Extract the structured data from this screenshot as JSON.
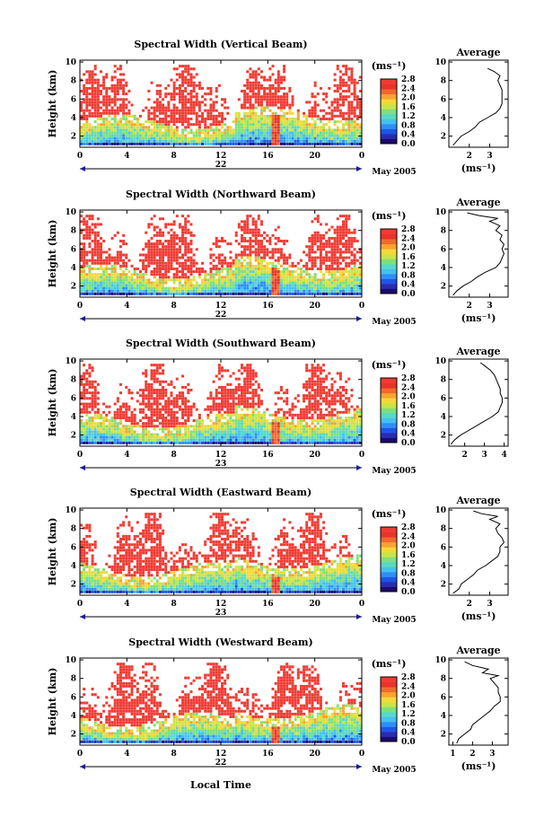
{
  "figure": {
    "xlabel": "Local Time",
    "colormap": [
      "#1a0a6b",
      "#2b2bb0",
      "#1f55e6",
      "#2f8ff5",
      "#45c0f0",
      "#58d8c8",
      "#7ee07a",
      "#c9e445",
      "#f4d83a",
      "#f7a530",
      "#f06a2c",
      "#e8342a",
      "#ef3b33"
    ]
  },
  "chart_data": [
    {
      "type": "heatmap",
      "title": "Spectral Width (Vertical Beam)",
      "ylabel": "Height (km)",
      "x_ticks": [
        "0",
        "4",
        "8",
        "12",
        "16",
        "20",
        "0"
      ],
      "y_ticks": [
        "2",
        "4",
        "6",
        "8",
        "10"
      ],
      "xlim": [
        0,
        24
      ],
      "ylim": [
        0.8,
        10.2
      ],
      "date_label": "22",
      "month_label": "May 2005",
      "colorbar": {
        "unit": "(ms⁻¹)",
        "ticks": [
          "2.8",
          "2.4",
          "2.0",
          "1.6",
          "1.2",
          "0.8",
          "0.4",
          "0.0"
        ],
        "range": [
          0.0,
          2.8
        ]
      },
      "profile": {
        "title": "Average",
        "xlabel": "(ms⁻¹)",
        "x_ticks": [
          "2",
          "3"
        ],
        "y_ticks": [
          "2",
          "4",
          "6",
          "8",
          "10"
        ],
        "xlim": [
          1.0,
          3.9
        ],
        "points": [
          [
            1.2,
            1.0
          ],
          [
            1.4,
            1.5
          ],
          [
            1.6,
            2.0
          ],
          [
            2.0,
            2.5
          ],
          [
            2.3,
            3.0
          ],
          [
            2.5,
            3.5
          ],
          [
            2.9,
            4.0
          ],
          [
            3.3,
            4.5
          ],
          [
            3.5,
            5.0
          ],
          [
            3.6,
            5.5
          ],
          [
            3.6,
            6.0
          ],
          [
            3.6,
            6.5
          ],
          [
            3.6,
            7.0
          ],
          [
            3.5,
            7.5
          ],
          [
            3.4,
            8.0
          ],
          [
            3.5,
            8.5
          ],
          [
            3.2,
            9.0
          ],
          [
            2.9,
            9.3
          ]
        ]
      }
    },
    {
      "type": "heatmap",
      "title": "Spectral Width (Northward Beam)",
      "ylabel": "Height (km)",
      "x_ticks": [
        "0",
        "4",
        "8",
        "12",
        "16",
        "20",
        "0"
      ],
      "y_ticks": [
        "2",
        "4",
        "6",
        "8",
        "10"
      ],
      "xlim": [
        0,
        24
      ],
      "ylim": [
        0.8,
        10.2
      ],
      "date_label": "22",
      "month_label": "May 2005",
      "colorbar": {
        "unit": "(ms⁻¹)",
        "ticks": [
          "2.8",
          "2.4",
          "2.0",
          "1.6",
          "1.2",
          "0.8",
          "0.4",
          "0.0"
        ],
        "range": [
          0.0,
          2.8
        ]
      },
      "profile": {
        "title": "Average",
        "xlabel": "(ms⁻¹)",
        "x_ticks": [
          "2",
          "3"
        ],
        "y_ticks": [
          "2",
          "4",
          "6",
          "8",
          "10"
        ],
        "xlim": [
          1.0,
          3.9
        ],
        "points": [
          [
            1.2,
            1.0
          ],
          [
            1.4,
            1.5
          ],
          [
            1.7,
            2.0
          ],
          [
            2.1,
            2.5
          ],
          [
            2.4,
            3.0
          ],
          [
            2.8,
            3.5
          ],
          [
            3.3,
            4.0
          ],
          [
            3.5,
            4.5
          ],
          [
            3.6,
            5.0
          ],
          [
            3.7,
            5.5
          ],
          [
            3.6,
            6.0
          ],
          [
            3.7,
            6.5
          ],
          [
            3.5,
            7.0
          ],
          [
            3.6,
            7.5
          ],
          [
            3.3,
            8.0
          ],
          [
            3.5,
            8.5
          ],
          [
            3.0,
            9.0
          ],
          [
            3.4,
            9.3
          ],
          [
            2.5,
            9.6
          ],
          [
            1.9,
            9.9
          ]
        ]
      }
    },
    {
      "type": "heatmap",
      "title": "Spectral Width (Southward Beam)",
      "ylabel": "Height (km)",
      "x_ticks": [
        "0",
        "4",
        "8",
        "12",
        "16",
        "20",
        "0"
      ],
      "y_ticks": [
        "2",
        "4",
        "6",
        "8",
        "10"
      ],
      "xlim": [
        0,
        24
      ],
      "ylim": [
        0.8,
        10.2
      ],
      "date_label": "23",
      "month_label": "May 2005",
      "colorbar": {
        "unit": "(ms⁻¹)",
        "ticks": [
          "2.8",
          "2.4",
          "2.0",
          "1.6",
          "1.2",
          "0.8",
          "0.4",
          "0.0"
        ],
        "range": [
          0.0,
          2.8
        ]
      },
      "profile": {
        "title": "Average",
        "xlabel": "",
        "x_ticks": [
          "2",
          "3",
          "4"
        ],
        "y_ticks": [
          "2",
          "4",
          "6",
          "8",
          "10"
        ],
        "xlim": [
          1.2,
          4.2
        ],
        "points": [
          [
            1.3,
            1.0
          ],
          [
            1.5,
            1.5
          ],
          [
            1.8,
            2.0
          ],
          [
            2.2,
            2.5
          ],
          [
            2.6,
            3.0
          ],
          [
            3.0,
            3.5
          ],
          [
            3.4,
            4.0
          ],
          [
            3.7,
            4.5
          ],
          [
            3.8,
            5.0
          ],
          [
            3.9,
            5.5
          ],
          [
            3.9,
            6.0
          ],
          [
            3.8,
            6.5
          ],
          [
            3.8,
            7.0
          ],
          [
            3.7,
            7.5
          ],
          [
            3.6,
            8.0
          ],
          [
            3.5,
            8.5
          ],
          [
            3.3,
            9.0
          ],
          [
            3.0,
            9.5
          ],
          [
            2.8,
            9.8
          ]
        ]
      }
    },
    {
      "type": "heatmap",
      "title": "Spectral Width (Eastward Beam)",
      "ylabel": "Height (km)",
      "x_ticks": [
        "0",
        "4",
        "8",
        "12",
        "16",
        "20",
        "0"
      ],
      "y_ticks": [
        "2",
        "4",
        "6",
        "8",
        "10"
      ],
      "xlim": [
        0,
        24
      ],
      "ylim": [
        0.8,
        10.2
      ],
      "date_label": "23",
      "month_label": "May 2005",
      "colorbar": {
        "unit": "(ms⁻¹)",
        "ticks": [
          "2.8",
          "2.4",
          "2.0",
          "1.6",
          "1.2",
          "0.8",
          "0.4",
          "0.0"
        ],
        "range": [
          0.0,
          2.8
        ]
      },
      "profile": {
        "title": "Average",
        "xlabel": "(ms⁻¹)",
        "x_ticks": [
          "2",
          "3"
        ],
        "y_ticks": [
          "2",
          "4",
          "6",
          "8",
          "10"
        ],
        "xlim": [
          1.0,
          3.9
        ],
        "points": [
          [
            1.2,
            1.0
          ],
          [
            1.5,
            1.5
          ],
          [
            1.6,
            2.0
          ],
          [
            1.9,
            2.5
          ],
          [
            2.2,
            3.0
          ],
          [
            2.4,
            3.5
          ],
          [
            2.8,
            4.0
          ],
          [
            3.1,
            4.5
          ],
          [
            3.4,
            5.0
          ],
          [
            3.5,
            5.5
          ],
          [
            3.5,
            6.0
          ],
          [
            3.7,
            6.5
          ],
          [
            3.6,
            7.0
          ],
          [
            3.4,
            7.5
          ],
          [
            3.3,
            8.0
          ],
          [
            3.5,
            8.5
          ],
          [
            3.0,
            9.0
          ],
          [
            3.4,
            9.3
          ],
          [
            2.6,
            9.6
          ],
          [
            2.2,
            9.9
          ]
        ]
      }
    },
    {
      "type": "heatmap",
      "title": "Spectral Width (Westward Beam)",
      "ylabel": "Height (km)",
      "x_ticks": [
        "0",
        "4",
        "8",
        "12",
        "16",
        "20",
        "0"
      ],
      "y_ticks": [
        "2",
        "4",
        "6",
        "8",
        "10"
      ],
      "xlim": [
        0,
        24
      ],
      "ylim": [
        0.8,
        10.2
      ],
      "date_label": "22",
      "month_label": "May 2005",
      "colorbar": {
        "unit": "(ms⁻¹)",
        "ticks": [
          "2.8",
          "2.4",
          "2.0",
          "1.6",
          "1.2",
          "0.8",
          "0.4",
          "0.0"
        ],
        "range": [
          0.0,
          2.8
        ]
      },
      "profile": {
        "title": "Average",
        "xlabel": "(ms⁻¹)",
        "x_ticks": [
          "1",
          "2",
          "3"
        ],
        "y_ticks": [
          "2",
          "4",
          "6",
          "8",
          "10"
        ],
        "xlim": [
          0.8,
          3.8
        ],
        "points": [
          [
            1.2,
            1.0
          ],
          [
            1.3,
            1.5
          ],
          [
            1.6,
            2.0
          ],
          [
            1.9,
            2.5
          ],
          [
            2.0,
            3.0
          ],
          [
            2.3,
            3.5
          ],
          [
            2.6,
            4.0
          ],
          [
            2.9,
            4.5
          ],
          [
            3.1,
            5.0
          ],
          [
            3.4,
            5.5
          ],
          [
            3.4,
            6.0
          ],
          [
            3.3,
            6.5
          ],
          [
            3.3,
            7.0
          ],
          [
            3.1,
            7.5
          ],
          [
            2.9,
            8.0
          ],
          [
            3.3,
            8.3
          ],
          [
            2.5,
            8.6
          ],
          [
            2.8,
            9.0
          ],
          [
            2.0,
            9.4
          ],
          [
            1.6,
            9.8
          ]
        ]
      }
    }
  ]
}
